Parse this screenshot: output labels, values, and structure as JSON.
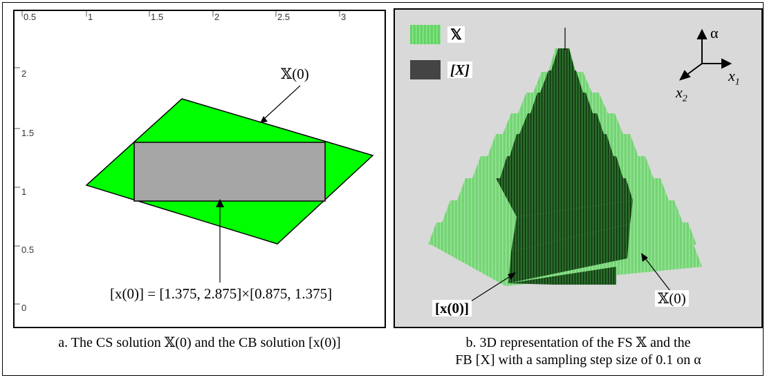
{
  "panel_a": {
    "x_ticks": [
      "0.5",
      "1",
      "1.5",
      "2",
      "2.5",
      "3"
    ],
    "y_ticks": [
      "2",
      "1.5",
      "1",
      "0.5",
      "0"
    ],
    "label_set": "𝕏(0)",
    "label_box": "[x(0)] = [1.375, 2.875]×[0.875, 1.375]",
    "colors": {
      "parallelogram": "#00ff00",
      "rectangle": "#a6a6a6"
    },
    "caption": "a. The CS solution 𝕏(0) and the CB solution [x(0)]"
  },
  "panel_b": {
    "legend": [
      {
        "label": "𝕏",
        "color": "#5fd35f"
      },
      {
        "label": "[X]",
        "color": "#444444"
      }
    ],
    "axes": {
      "alpha": "α",
      "x1": "x",
      "x1_sub": "1",
      "x2": "x",
      "x2_sub": "2"
    },
    "label_box": "[x(0)]",
    "label_set": "𝕏(0)",
    "caption_line1": "b. 3D representation of the FS 𝕏 and the",
    "caption_line2": "FB [X] with a sampling step size of 0.1 on α"
  }
}
